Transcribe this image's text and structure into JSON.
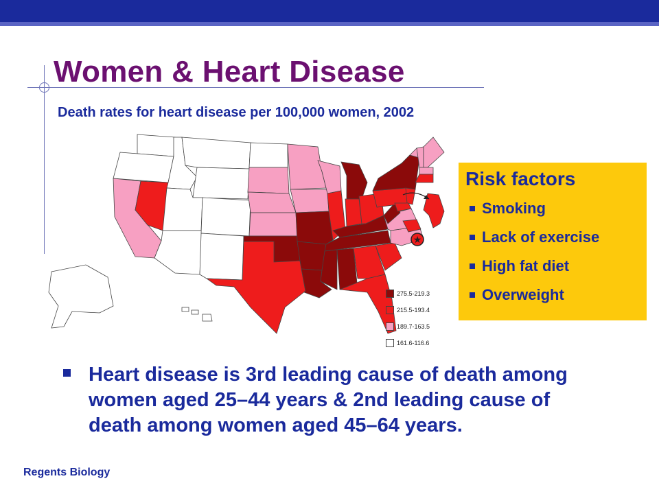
{
  "slide": {
    "title": "Women & Heart Disease",
    "subtitle": "Death rates for heart disease per 100,000 women, 2002",
    "footer": "Regents Biology",
    "main_bullet": "Heart disease is 3rd leading cause of death among women aged 25–44 years & 2nd leading cause of death among women aged 45–64 years."
  },
  "risk_box": {
    "title": "Risk factors",
    "items": [
      "Smoking",
      "Lack of exercise",
      "High fat diet",
      "Overweight"
    ]
  },
  "map": {
    "legend": [
      {
        "label": "275.5-219.3",
        "color": "#8b0a0a"
      },
      {
        "label": "215.5-193.4",
        "color": "#ee1c1c"
      },
      {
        "label": "189.7-163.5",
        "color": "#f7a0c2"
      },
      {
        "label": "161.6-116.6",
        "color": "#ffffff"
      }
    ],
    "colors": {
      "high": "#8b0a0a",
      "mid_high": "#ee1c1c",
      "mid_low": "#f7a0c2",
      "low": "#ffffff",
      "border": "#444444"
    }
  },
  "theme": {
    "brand_blue": "#1a2a9c",
    "title_purple": "#6b1070",
    "risk_box_yellow": "#fdc90c"
  }
}
